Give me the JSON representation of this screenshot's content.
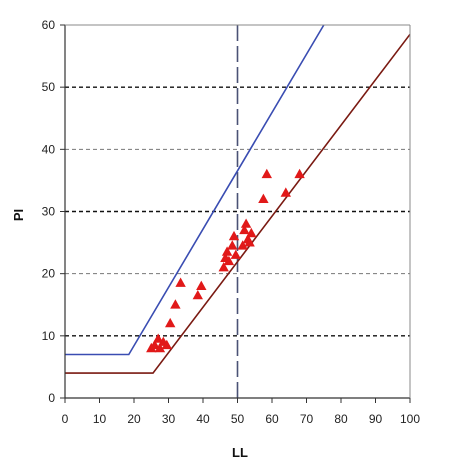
{
  "chart_data": {
    "type": "scatter",
    "title": "",
    "xlabel": "LL",
    "ylabel": "PI",
    "xlim": [
      0,
      100
    ],
    "ylim": [
      0,
      60
    ],
    "x_ticks": [
      "0",
      "10",
      "20",
      "30",
      "40",
      "50",
      "60",
      "70",
      "80",
      "90",
      "100"
    ],
    "y_ticks": [
      "0",
      "10",
      "20",
      "30",
      "40",
      "50",
      "60"
    ],
    "horizontal_gridlines": [
      10,
      20,
      30,
      40,
      50
    ],
    "vertical_reference_x": 50,
    "series": [
      {
        "kind": "points",
        "marker": "triangle",
        "color": "#e11919",
        "points": [
          [
            25,
            8
          ],
          [
            26,
            8.5
          ],
          [
            27,
            9.5
          ],
          [
            27.5,
            8
          ],
          [
            28.5,
            9
          ],
          [
            29.5,
            8.5
          ],
          [
            30.5,
            12
          ],
          [
            32,
            15
          ],
          [
            33.5,
            18.5
          ],
          [
            38.5,
            16.5
          ],
          [
            39.5,
            18
          ],
          [
            46,
            21
          ],
          [
            46.5,
            22.5
          ],
          [
            47,
            23.5
          ],
          [
            47.5,
            22
          ],
          [
            48.5,
            24.5
          ],
          [
            49,
            26
          ],
          [
            49.5,
            23
          ],
          [
            51.5,
            24.5
          ],
          [
            52,
            27
          ],
          [
            52.5,
            28
          ],
          [
            53,
            25.5
          ],
          [
            53.5,
            25
          ],
          [
            54,
            26.5
          ],
          [
            57.5,
            32
          ],
          [
            58.5,
            36
          ],
          [
            64,
            33
          ],
          [
            68,
            36
          ]
        ]
      },
      {
        "kind": "line",
        "color": "#3a4db2",
        "points": [
          [
            0,
            7
          ],
          [
            18.5,
            7
          ],
          [
            75,
            60
          ]
        ]
      },
      {
        "kind": "line",
        "color": "#7a1a12",
        "points": [
          [
            0,
            4
          ],
          [
            25.5,
            4
          ],
          [
            100,
            58.5
          ]
        ]
      }
    ]
  }
}
